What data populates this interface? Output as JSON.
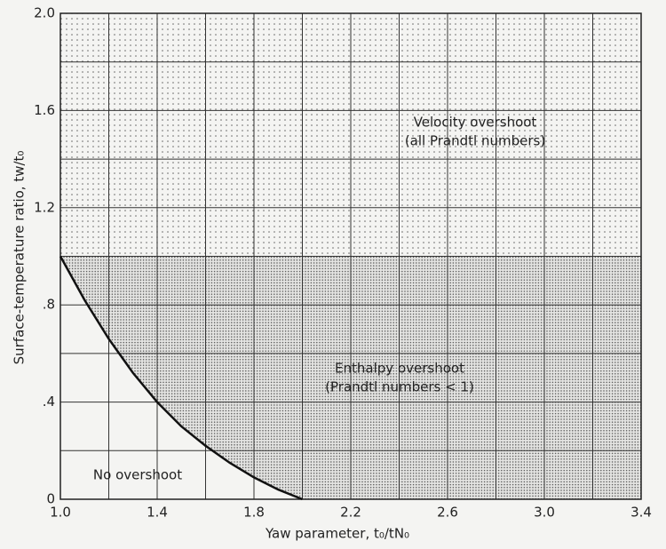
{
  "chart_data": {
    "type": "region",
    "x_label": "Yaw parameter, t₀/tN₀",
    "y_label": "Surface-temperature ratio, tw/t₀",
    "xlim": [
      1.0,
      3.4
    ],
    "ylim": [
      0,
      2.0
    ],
    "xticks": [
      {
        "value": 1.0,
        "label": "1.0"
      },
      1.4,
      1.8,
      2.2,
      2.6,
      {
        "value": 3.0,
        "label": "3.0"
      },
      3.4
    ],
    "yticks": [
      0,
      {
        "value": 0.4,
        "label": ".4"
      },
      {
        "value": 0.8,
        "label": ".8"
      },
      1.2,
      1.6,
      {
        "value": 2.0,
        "label": "2.0"
      }
    ],
    "x_minor_ticks": [
      1.2,
      1.6,
      2.0,
      2.4,
      2.8,
      3.2
    ],
    "y_minor_ticks": [
      0.2,
      0.6,
      1.0,
      1.4,
      1.8
    ],
    "grid": true,
    "boundary": {
      "x": [
        1.0,
        1.1,
        1.2,
        1.3,
        1.4,
        1.5,
        1.6,
        1.7,
        1.8,
        1.9,
        2.0
      ],
      "values": [
        1.0,
        0.82,
        0.66,
        0.52,
        0.4,
        0.3,
        0.22,
        0.15,
        0.09,
        0.04,
        0
      ],
      "color": "#111"
    },
    "upper_region_ylim": [
      1.0,
      2.0
    ],
    "annotations": [
      {
        "lines": [
          "Velocity overshoot",
          "(all Prandtl numbers)"
        ]
      },
      {
        "lines": [
          "Enthalpy overshoot",
          "(Prandtl numbers < 1)"
        ]
      },
      {
        "lines": [
          "No overshoot"
        ]
      }
    ]
  }
}
